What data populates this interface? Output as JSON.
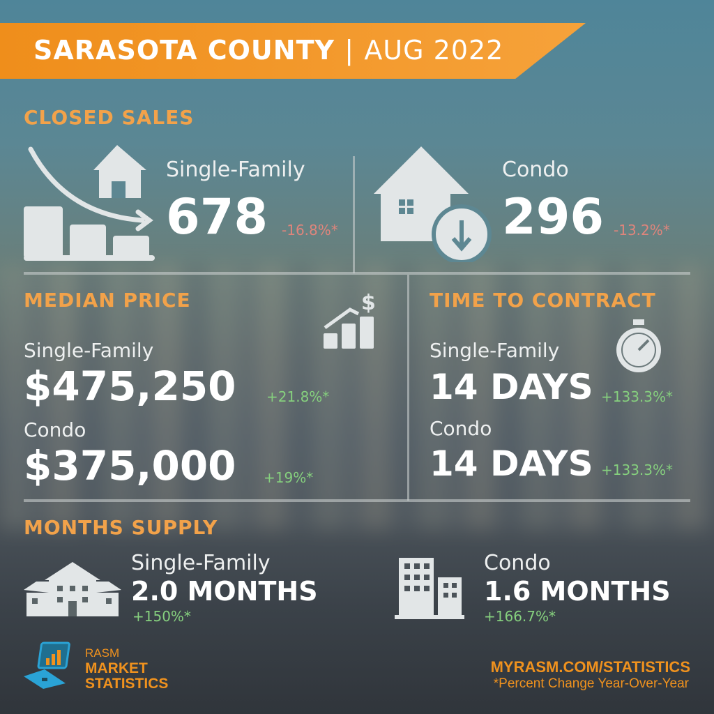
{
  "header": {
    "county": "SARASOTA COUNTY",
    "separator": "|",
    "period": "AUG 2022"
  },
  "closed_sales": {
    "title": "CLOSED SALES",
    "single_family": {
      "label": "Single-Family",
      "value": "678",
      "change": "-16.8%*"
    },
    "condo": {
      "label": "Condo",
      "value": "296",
      "change": "-13.2%*"
    }
  },
  "median_price": {
    "title": "MEDIAN PRICE",
    "single_family": {
      "label": "Single-Family",
      "value": "$475,250",
      "change": "+21.8%*"
    },
    "condo": {
      "label": "Condo",
      "value": "$375,000",
      "change": "+19%*"
    }
  },
  "time_to_contract": {
    "title": "TIME TO CONTRACT",
    "single_family": {
      "label": "Single-Family",
      "value": "14 DAYS",
      "change": "+133.3%*"
    },
    "condo": {
      "label": "Condo",
      "value": "14 DAYS",
      "change": "+133.3%*"
    }
  },
  "months_supply": {
    "title": "MONTHS SUPPLY",
    "single_family": {
      "label": "Single-Family",
      "value": "2.0 MONTHS",
      "change": "+150%*"
    },
    "condo": {
      "label": "Condo",
      "value": "1.6 MONTHS",
      "change": "+166.7%*"
    }
  },
  "footer": {
    "logo_line1": "RASM",
    "logo_line2": "MARKET",
    "logo_line3": "STATISTICS",
    "url": "MYRASM.COM/STATISTICS",
    "note": "*Percent Change Year-Over-Year"
  },
  "colors": {
    "accent": "#f0921e",
    "negative": "#e0857c",
    "positive": "#86d07e",
    "logo_blue": "#2aa3d6"
  }
}
